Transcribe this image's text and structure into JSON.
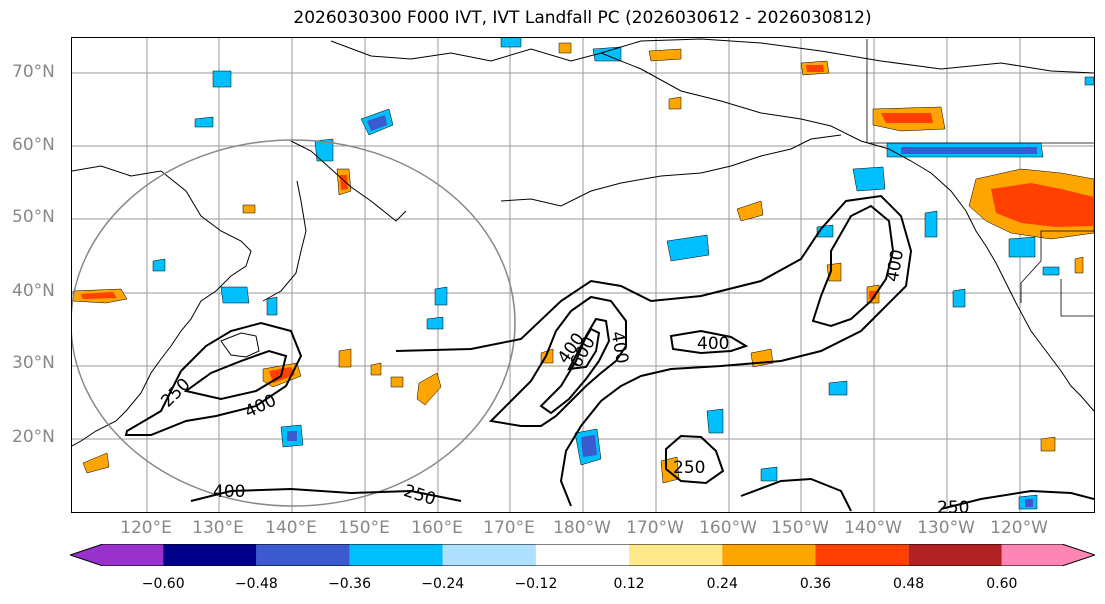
{
  "title": "2026030300 F000 IVT, IVT Landfall PC (2026030612 - 2026030812)",
  "lat_labels": [
    "70°N",
    "60°N",
    "50°N",
    "40°N",
    "30°N",
    "20°N"
  ],
  "lon_labels": [
    "120°E",
    "130°E",
    "140°E",
    "150°E",
    "160°E",
    "170°E",
    "180°W",
    "170°W",
    "160°W",
    "150°W",
    "140°W",
    "130°W",
    "120°W"
  ],
  "contour_labels": [
    "250",
    "400",
    "400",
    "400",
    "600",
    "400",
    "400",
    "250",
    "250",
    "250",
    "400"
  ],
  "colorbar": {
    "colors": [
      "#9932CC",
      "#00008B",
      "#3C5AD0",
      "#00BFFF",
      "#B0E0FF",
      "#FFFFFF",
      "#FFE98A",
      "#FFA500",
      "#FF4000",
      "#B22222",
      "#FF85B4"
    ],
    "ticks": [
      "−0.60",
      "−0.48",
      "−0.36",
      "−0.24",
      "−0.12",
      "0.12",
      "0.24",
      "0.36",
      "0.48",
      "0.60"
    ]
  }
}
